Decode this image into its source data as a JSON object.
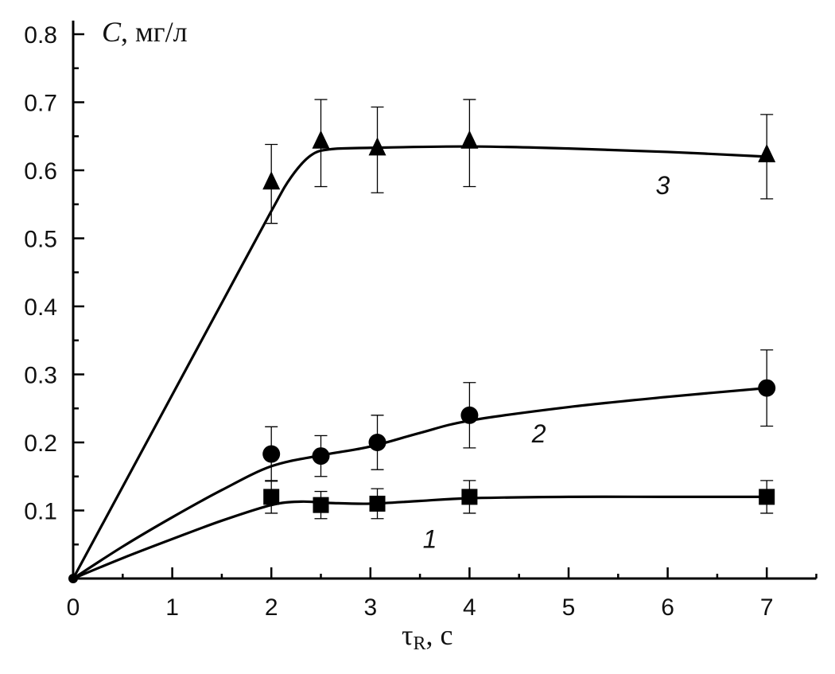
{
  "chart_data": {
    "type": "scatter",
    "title": "",
    "xlabel": "τR, c",
    "xlabel_main": "τ",
    "xlabel_sub": "R",
    "xlabel_unit": ", c",
    "ylabel_var": "C",
    "ylabel_unit": ", мг/л",
    "xlim": [
      0,
      7.5
    ],
    "ylim": [
      0,
      0.82
    ],
    "x_ticks": [
      0,
      1,
      2,
      3,
      4,
      5,
      6,
      7
    ],
    "x_tick_labels": [
      "0",
      "1",
      "2",
      "3",
      "4",
      "5",
      "6",
      "7"
    ],
    "y_ticks": [
      0.1,
      0.2,
      0.3,
      0.4,
      0.5,
      0.6,
      0.7,
      0.8
    ],
    "y_tick_labels": [
      "0.1",
      "0.2",
      "0.3",
      "0.4",
      "0.5",
      "0.6",
      "0.7",
      "0.8"
    ],
    "grid": false,
    "origin_point": [
      0,
      0
    ],
    "series": [
      {
        "name": "1",
        "marker": "square",
        "label_pos": [
          3.6,
          0.045
        ],
        "x": [
          2,
          2.5,
          3.07,
          4,
          7
        ],
        "y": [
          0.12,
          0.108,
          0.11,
          0.12,
          0.12
        ],
        "err": [
          0.024,
          0.02,
          0.022,
          0.024,
          0.024
        ],
        "fit": [
          [
            0,
            0
          ],
          [
            0.5,
            0.03
          ],
          [
            1,
            0.058
          ],
          [
            1.5,
            0.085
          ],
          [
            2,
            0.108
          ],
          [
            2.3,
            0.113
          ],
          [
            2.6,
            0.111
          ],
          [
            3,
            0.11
          ],
          [
            3.5,
            0.114
          ],
          [
            4,
            0.118
          ],
          [
            5,
            0.12
          ],
          [
            6,
            0.12
          ],
          [
            7,
            0.12
          ]
        ]
      },
      {
        "name": "2",
        "marker": "circle",
        "label_pos": [
          4.7,
          0.2
        ],
        "x": [
          2,
          2.5,
          3.07,
          4,
          7
        ],
        "y": [
          0.183,
          0.18,
          0.2,
          0.24,
          0.28
        ],
        "err": [
          0.04,
          0.03,
          0.04,
          0.048,
          0.056
        ],
        "fit": [
          [
            0,
            0
          ],
          [
            0.5,
            0.047
          ],
          [
            1,
            0.09
          ],
          [
            1.5,
            0.13
          ],
          [
            2,
            0.165
          ],
          [
            2.5,
            0.181
          ],
          [
            3,
            0.194
          ],
          [
            3.5,
            0.214
          ],
          [
            4,
            0.232
          ],
          [
            5,
            0.252
          ],
          [
            6,
            0.267
          ],
          [
            7,
            0.28
          ]
        ]
      },
      {
        "name": "3",
        "marker": "triangle",
        "label_pos": [
          5.95,
          0.565
        ],
        "x": [
          2,
          2.5,
          3.07,
          4,
          7
        ],
        "y": [
          0.58,
          0.64,
          0.63,
          0.64,
          0.62
        ],
        "err": [
          0.058,
          0.064,
          0.063,
          0.064,
          0.062
        ],
        "fit": [
          [
            0,
            0
          ],
          [
            0.5,
            0.135
          ],
          [
            1,
            0.27
          ],
          [
            1.5,
            0.405
          ],
          [
            2,
            0.54
          ],
          [
            2.2,
            0.59
          ],
          [
            2.4,
            0.622
          ],
          [
            2.6,
            0.631
          ],
          [
            3,
            0.633
          ],
          [
            4,
            0.635
          ],
          [
            5,
            0.632
          ],
          [
            6,
            0.627
          ],
          [
            7,
            0.62
          ]
        ]
      }
    ]
  }
}
